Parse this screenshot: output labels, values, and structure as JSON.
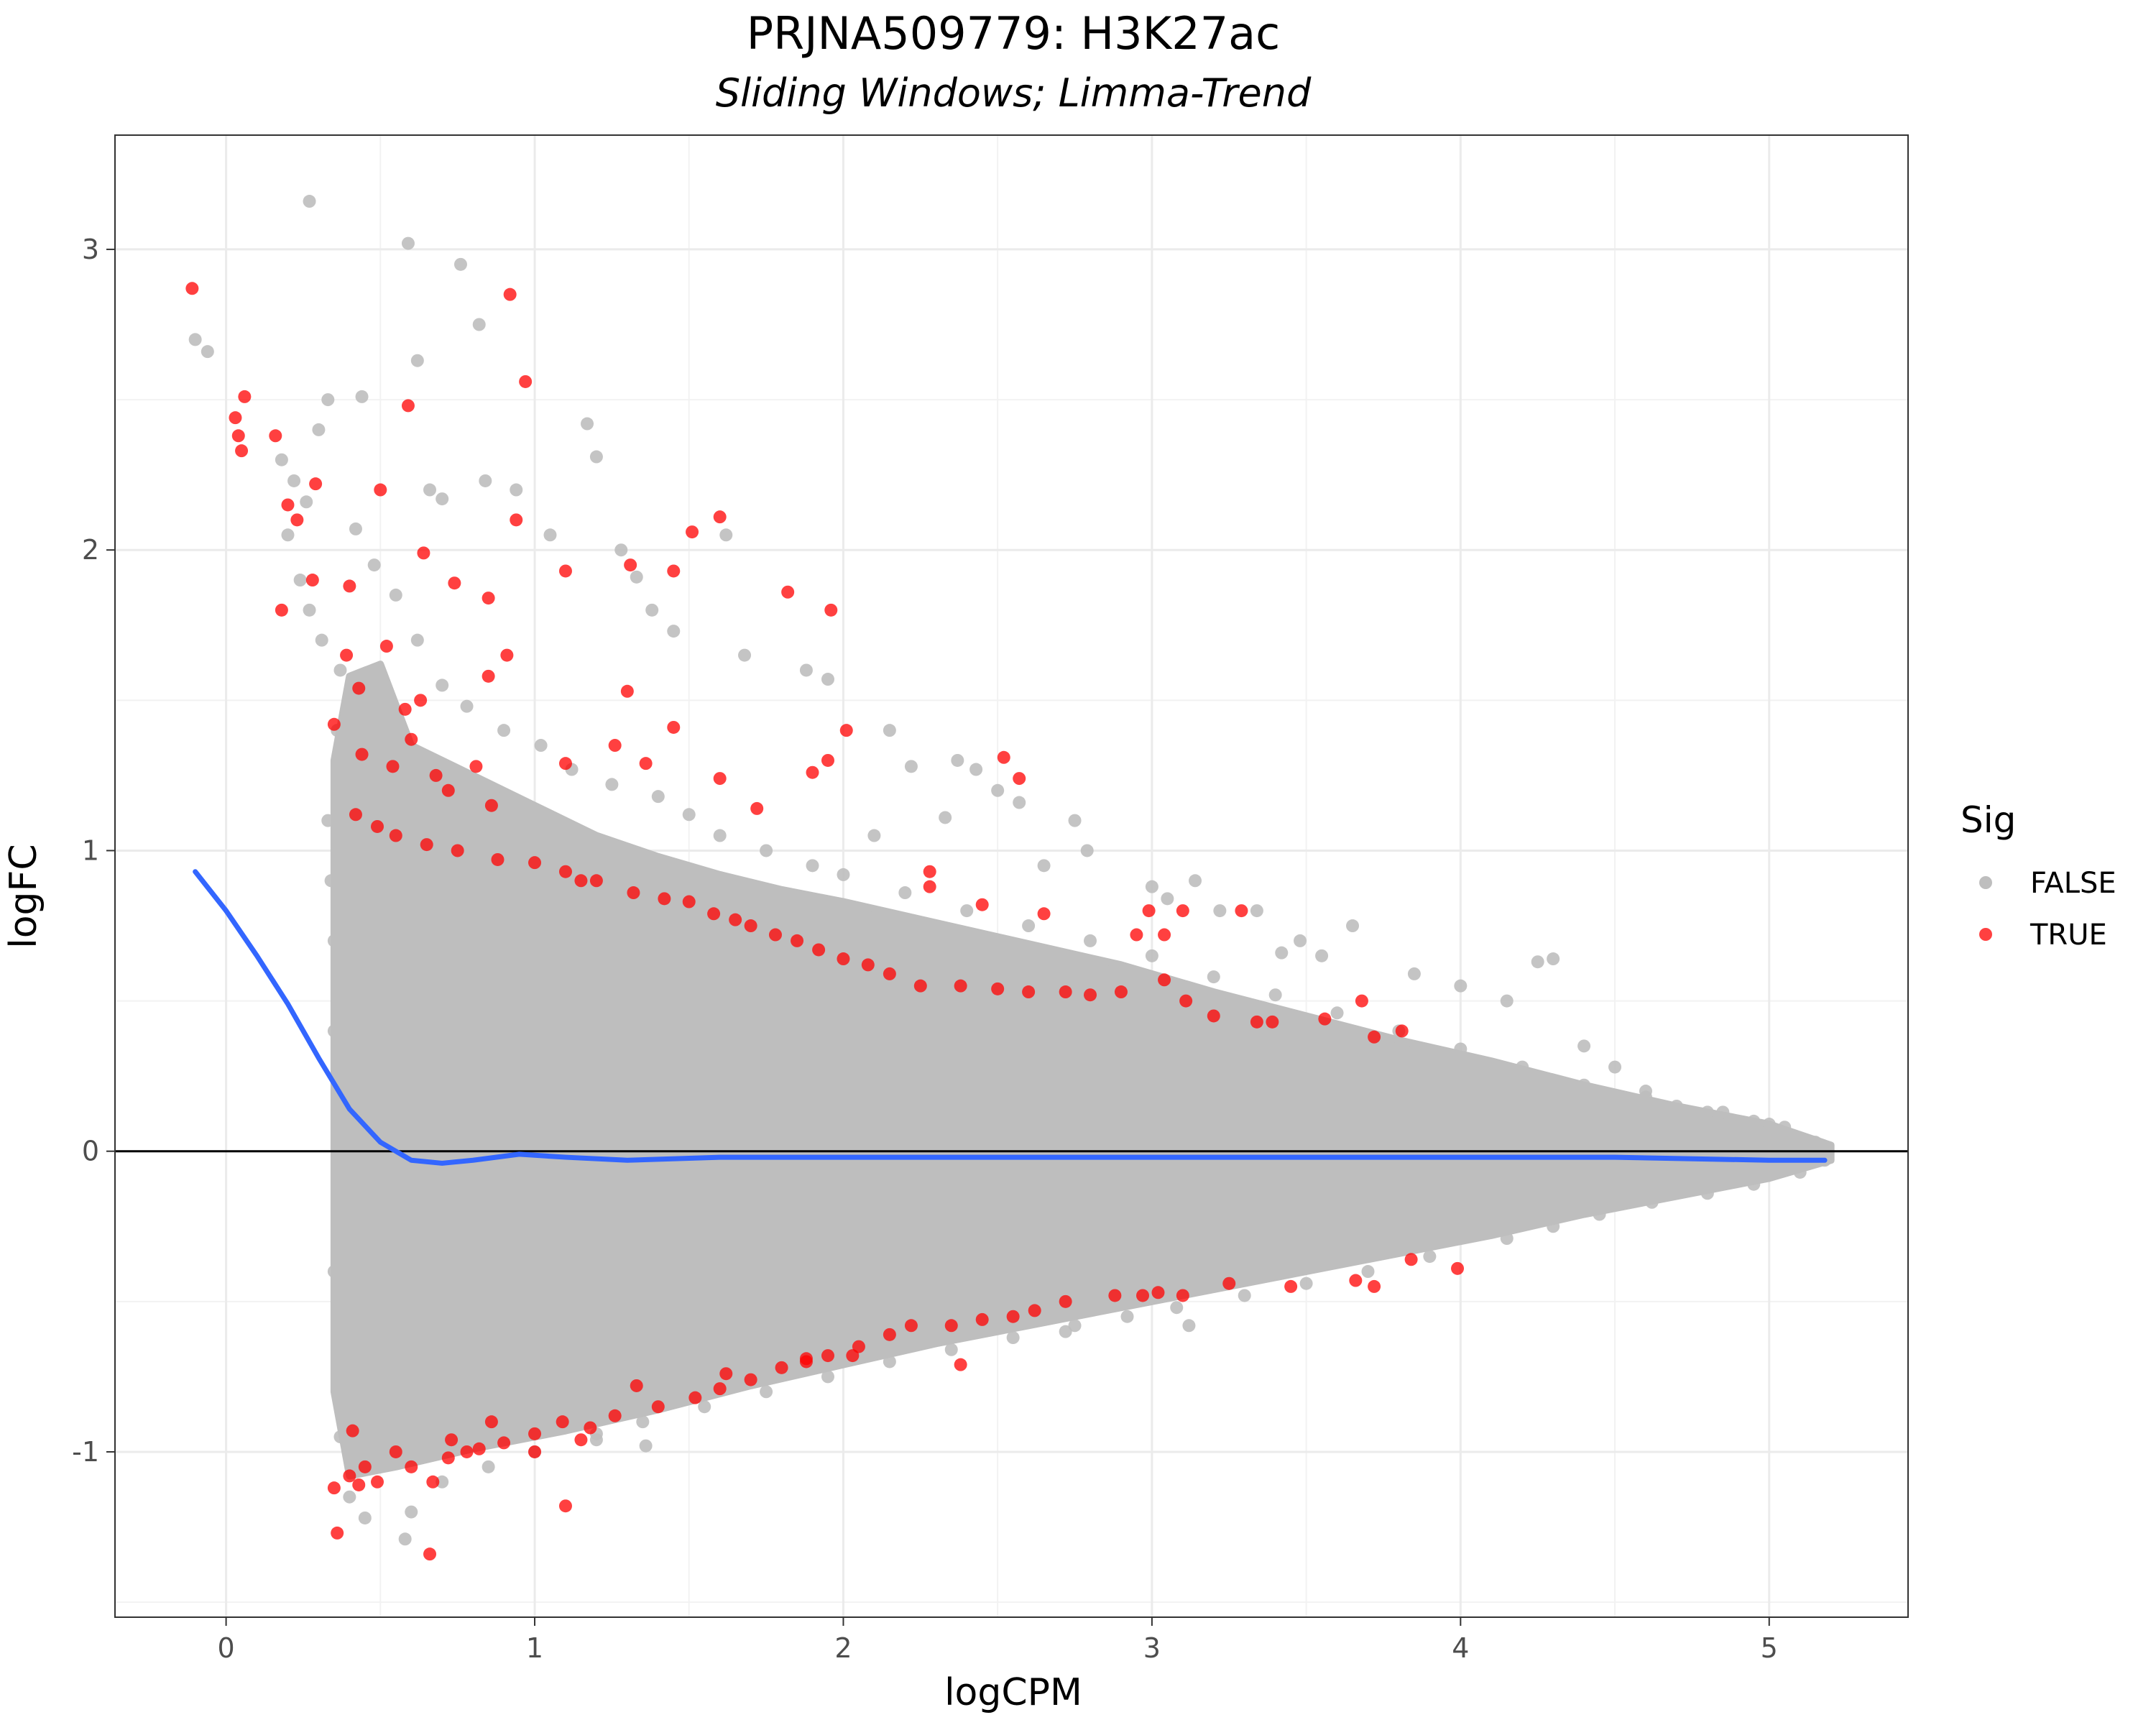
{
  "chart_data": {
    "type": "scatter",
    "title": "PRJNA509779: H3K27ac",
    "subtitle": "Sliding Windows; Limma-Trend",
    "xlabel": "logCPM",
    "ylabel": "logFC",
    "xlim": [
      -0.36,
      5.45
    ],
    "ylim": [
      -1.55,
      3.38
    ],
    "x_ticks": [
      0,
      1,
      2,
      3,
      4,
      5
    ],
    "y_ticks": [
      -1,
      0,
      1,
      2,
      3
    ],
    "x_tick_labels": [
      "0",
      "1",
      "2",
      "3",
      "4",
      "5"
    ],
    "y_tick_labels": [
      "-1",
      "0",
      "1",
      "2",
      "3"
    ],
    "grid": true,
    "hline_y": 0,
    "legend": {
      "title": "Sig",
      "position": "right",
      "entries": [
        {
          "label": "FALSE",
          "color": "#bebebe"
        },
        {
          "label": "TRUE",
          "color": "#ff0000"
        }
      ]
    },
    "series": [
      {
        "name": "FALSE",
        "color": "#bebebe",
        "points": [
          [
            -0.1,
            2.7
          ],
          [
            -0.06,
            2.66
          ],
          [
            0.27,
            3.16
          ],
          [
            0.59,
            3.02
          ],
          [
            0.76,
            2.95
          ],
          [
            0.82,
            2.75
          ],
          [
            0.62,
            2.63
          ],
          [
            0.33,
            2.5
          ],
          [
            0.44,
            2.51
          ],
          [
            1.17,
            2.42
          ],
          [
            1.2,
            2.31
          ],
          [
            0.3,
            2.4
          ],
          [
            0.18,
            2.3
          ],
          [
            0.22,
            2.23
          ],
          [
            0.94,
            2.2
          ],
          [
            0.84,
            2.23
          ],
          [
            0.66,
            2.2
          ],
          [
            0.7,
            2.17
          ],
          [
            1.05,
            2.05
          ],
          [
            1.28,
            2.0
          ],
          [
            1.62,
            2.05
          ],
          [
            1.33,
            1.91
          ],
          [
            1.38,
            1.8
          ],
          [
            1.45,
            1.73
          ],
          [
            1.68,
            1.65
          ],
          [
            1.88,
            1.6
          ],
          [
            1.95,
            1.57
          ],
          [
            2.15,
            1.4
          ],
          [
            2.22,
            1.28
          ],
          [
            2.37,
            1.3
          ],
          [
            2.43,
            1.27
          ],
          [
            2.5,
            1.2
          ],
          [
            2.57,
            1.16
          ],
          [
            2.1,
            1.05
          ],
          [
            2.33,
            1.11
          ],
          [
            2.75,
            1.1
          ],
          [
            2.79,
            1.0
          ],
          [
            2.65,
            0.95
          ],
          [
            3.0,
            0.88
          ],
          [
            3.05,
            0.84
          ],
          [
            3.14,
            0.9
          ],
          [
            3.34,
            0.8
          ],
          [
            3.22,
            0.8
          ],
          [
            3.48,
            0.7
          ],
          [
            3.65,
            0.75
          ],
          [
            3.42,
            0.66
          ],
          [
            3.55,
            0.65
          ],
          [
            3.85,
            0.59
          ],
          [
            4.0,
            0.55
          ],
          [
            4.15,
            0.5
          ],
          [
            4.25,
            0.63
          ],
          [
            4.3,
            0.64
          ],
          [
            4.4,
            0.35
          ],
          [
            4.5,
            0.28
          ],
          [
            4.6,
            0.2
          ],
          [
            4.7,
            0.15
          ],
          [
            4.85,
            0.13
          ],
          [
            4.95,
            0.1
          ],
          [
            5.05,
            0.08
          ],
          [
            5.15,
            0.03
          ],
          [
            5.18,
            -0.03
          ],
          [
            5.1,
            -0.07
          ],
          [
            4.95,
            -0.11
          ],
          [
            4.8,
            -0.14
          ],
          [
            4.62,
            -0.17
          ],
          [
            4.45,
            -0.21
          ],
          [
            4.3,
            -0.25
          ],
          [
            4.15,
            -0.29
          ],
          [
            3.9,
            -0.35
          ],
          [
            3.7,
            -0.4
          ],
          [
            3.5,
            -0.44
          ],
          [
            3.3,
            -0.48
          ],
          [
            3.08,
            -0.52
          ],
          [
            2.92,
            -0.55
          ],
          [
            2.75,
            -0.58
          ],
          [
            2.55,
            -0.62
          ],
          [
            2.35,
            -0.66
          ],
          [
            2.15,
            -0.7
          ],
          [
            1.95,
            -0.75
          ],
          [
            1.75,
            -0.8
          ],
          [
            1.55,
            -0.85
          ],
          [
            1.35,
            -0.9
          ],
          [
            1.2,
            -0.94
          ],
          [
            1.0,
            -1.0
          ],
          [
            0.85,
            -1.05
          ],
          [
            0.7,
            -1.1
          ],
          [
            0.6,
            -1.2
          ],
          [
            0.58,
            -1.29
          ],
          [
            0.45,
            -1.22
          ],
          [
            0.4,
            -1.15
          ],
          [
            0.37,
            -0.95
          ],
          [
            0.36,
            -0.7
          ],
          [
            0.35,
            -0.4
          ],
          [
            0.35,
            0.4
          ],
          [
            0.35,
            0.7
          ],
          [
            0.34,
            0.9
          ],
          [
            0.33,
            1.1
          ],
          [
            0.36,
            1.4
          ],
          [
            0.37,
            1.6
          ],
          [
            0.31,
            1.7
          ],
          [
            0.27,
            1.8
          ],
          [
            0.24,
            1.9
          ],
          [
            0.2,
            2.05
          ],
          [
            0.26,
            2.16
          ],
          [
            0.42,
            2.07
          ],
          [
            0.48,
            1.95
          ],
          [
            0.55,
            1.85
          ],
          [
            0.62,
            1.7
          ],
          [
            0.7,
            1.55
          ],
          [
            0.78,
            1.48
          ],
          [
            0.9,
            1.4
          ],
          [
            1.02,
            1.35
          ],
          [
            1.12,
            1.27
          ],
          [
            1.25,
            1.22
          ],
          [
            1.4,
            1.18
          ],
          [
            1.5,
            1.12
          ],
          [
            1.6,
            1.05
          ],
          [
            1.75,
            1.0
          ],
          [
            1.9,
            0.95
          ],
          [
            2.0,
            0.92
          ],
          [
            2.2,
            0.86
          ],
          [
            2.4,
            0.8
          ],
          [
            2.6,
            0.75
          ],
          [
            2.8,
            0.7
          ],
          [
            3.0,
            0.65
          ],
          [
            3.2,
            0.58
          ],
          [
            3.4,
            0.52
          ],
          [
            3.6,
            0.46
          ],
          [
            3.8,
            0.4
          ],
          [
            4.0,
            0.34
          ],
          [
            4.2,
            0.28
          ],
          [
            4.4,
            0.22
          ],
          [
            4.6,
            0.18
          ],
          [
            4.8,
            0.13
          ],
          [
            5.0,
            0.09
          ],
          [
            3.88,
            0.1
          ],
          [
            2.72,
            -0.6
          ],
          [
            3.12,
            -0.58
          ],
          [
            1.2,
            -0.96
          ],
          [
            1.36,
            -0.98
          ]
        ]
      },
      {
        "name": "TRUE",
        "color": "#ff0000",
        "points": [
          [
            -0.11,
            2.87
          ],
          [
            0.92,
            2.85
          ],
          [
            0.97,
            2.56
          ],
          [
            0.06,
            2.51
          ],
          [
            0.59,
            2.48
          ],
          [
            0.03,
            2.44
          ],
          [
            0.04,
            2.38
          ],
          [
            0.16,
            2.38
          ],
          [
            0.05,
            2.33
          ],
          [
            0.29,
            2.22
          ],
          [
            0.5,
            2.2
          ],
          [
            0.2,
            2.15
          ],
          [
            0.23,
            2.1
          ],
          [
            0.94,
            2.1
          ],
          [
            1.6,
            2.11
          ],
          [
            1.51,
            2.06
          ],
          [
            0.64,
            1.99
          ],
          [
            1.31,
            1.95
          ],
          [
            1.1,
            1.93
          ],
          [
            1.45,
            1.93
          ],
          [
            0.28,
            1.9
          ],
          [
            0.4,
            1.88
          ],
          [
            0.74,
            1.89
          ],
          [
            1.82,
            1.86
          ],
          [
            1.96,
            1.8
          ],
          [
            0.18,
            1.8
          ],
          [
            0.85,
            1.84
          ],
          [
            0.91,
            1.65
          ],
          [
            0.85,
            1.58
          ],
          [
            0.52,
            1.68
          ],
          [
            0.39,
            1.65
          ],
          [
            0.43,
            1.54
          ],
          [
            0.63,
            1.5
          ],
          [
            0.58,
            1.47
          ],
          [
            0.35,
            1.42
          ],
          [
            0.6,
            1.37
          ],
          [
            0.44,
            1.32
          ],
          [
            0.54,
            1.28
          ],
          [
            0.68,
            1.25
          ],
          [
            0.72,
            1.2
          ],
          [
            0.81,
            1.28
          ],
          [
            0.86,
            1.15
          ],
          [
            1.1,
            1.29
          ],
          [
            1.26,
            1.35
          ],
          [
            1.3,
            1.53
          ],
          [
            1.45,
            1.41
          ],
          [
            1.36,
            1.29
          ],
          [
            1.6,
            1.24
          ],
          [
            1.72,
            1.14
          ],
          [
            1.9,
            1.26
          ],
          [
            2.01,
            1.4
          ],
          [
            1.95,
            1.3
          ],
          [
            2.52,
            1.31
          ],
          [
            2.57,
            1.24
          ],
          [
            0.42,
            1.12
          ],
          [
            0.49,
            1.08
          ],
          [
            0.55,
            1.05
          ],
          [
            0.65,
            1.02
          ],
          [
            0.75,
            1.0
          ],
          [
            0.88,
            0.97
          ],
          [
            1.0,
            0.96
          ],
          [
            1.1,
            0.93
          ],
          [
            1.2,
            0.9
          ],
          [
            1.32,
            0.86
          ],
          [
            1.42,
            0.84
          ],
          [
            1.5,
            0.83
          ],
          [
            1.58,
            0.79
          ],
          [
            1.65,
            0.77
          ],
          [
            1.7,
            0.75
          ],
          [
            1.78,
            0.72
          ],
          [
            1.85,
            0.7
          ],
          [
            1.92,
            0.67
          ],
          [
            2.0,
            0.64
          ],
          [
            2.08,
            0.62
          ],
          [
            2.15,
            0.59
          ],
          [
            2.25,
            0.55
          ],
          [
            2.38,
            0.55
          ],
          [
            2.5,
            0.54
          ],
          [
            2.6,
            0.53
          ],
          [
            2.72,
            0.53
          ],
          [
            2.8,
            0.52
          ],
          [
            2.9,
            0.53
          ],
          [
            3.04,
            0.57
          ],
          [
            3.11,
            0.5
          ],
          [
            3.2,
            0.45
          ],
          [
            3.34,
            0.43
          ],
          [
            3.39,
            0.43
          ],
          [
            3.56,
            0.44
          ],
          [
            3.68,
            0.5
          ],
          [
            3.72,
            0.38
          ],
          [
            3.81,
            0.4
          ],
          [
            2.28,
            0.93
          ],
          [
            2.45,
            0.82
          ],
          [
            2.65,
            0.79
          ],
          [
            2.95,
            0.72
          ],
          [
            3.04,
            0.72
          ],
          [
            2.99,
            0.8
          ],
          [
            3.1,
            0.8
          ],
          [
            3.29,
            0.8
          ],
          [
            1.15,
            0.9
          ],
          [
            2.28,
            0.88
          ],
          [
            0.36,
            -1.27
          ],
          [
            0.35,
            -1.12
          ],
          [
            0.4,
            -1.08
          ],
          [
            0.43,
            -1.11
          ],
          [
            0.45,
            -1.05
          ],
          [
            0.49,
            -1.1
          ],
          [
            0.6,
            -1.05
          ],
          [
            0.67,
            -1.1
          ],
          [
            0.72,
            -1.02
          ],
          [
            0.78,
            -1.0
          ],
          [
            0.82,
            -0.99
          ],
          [
            0.9,
            -0.97
          ],
          [
            1.0,
            -0.94
          ],
          [
            1.09,
            -0.9
          ],
          [
            1.1,
            -1.18
          ],
          [
            1.15,
            -0.96
          ],
          [
            1.18,
            -0.92
          ],
          [
            1.26,
            -0.88
          ],
          [
            1.4,
            -0.85
          ],
          [
            1.52,
            -0.82
          ],
          [
            1.6,
            -0.79
          ],
          [
            1.7,
            -0.76
          ],
          [
            1.8,
            -0.72
          ],
          [
            1.88,
            -0.7
          ],
          [
            1.95,
            -0.68
          ],
          [
            2.05,
            -0.65
          ],
          [
            2.15,
            -0.61
          ],
          [
            2.22,
            -0.58
          ],
          [
            2.35,
            -0.58
          ],
          [
            2.45,
            -0.56
          ],
          [
            2.55,
            -0.55
          ],
          [
            2.62,
            -0.53
          ],
          [
            2.72,
            -0.5
          ],
          [
            2.88,
            -0.48
          ],
          [
            2.97,
            -0.48
          ],
          [
            3.02,
            -0.47
          ],
          [
            3.1,
            -0.48
          ],
          [
            3.25,
            -0.44
          ],
          [
            3.45,
            -0.45
          ],
          [
            3.72,
            -0.45
          ],
          [
            3.99,
            -0.39
          ],
          [
            3.66,
            -0.43
          ],
          [
            3.84,
            -0.36
          ],
          [
            2.38,
            -0.71
          ],
          [
            2.03,
            -0.68
          ],
          [
            1.88,
            -0.69
          ],
          [
            0.41,
            -0.93
          ],
          [
            0.55,
            -1.0
          ],
          [
            0.66,
            -1.34
          ],
          [
            0.73,
            -0.96
          ],
          [
            0.86,
            -0.9
          ],
          [
            1.0,
            -1.0
          ],
          [
            1.33,
            -0.78
          ],
          [
            1.62,
            -0.74
          ]
        ]
      }
    ],
    "loess_trend": {
      "color": "#3366ff",
      "points": [
        [
          -0.1,
          0.93
        ],
        [
          0.0,
          0.8
        ],
        [
          0.1,
          0.65
        ],
        [
          0.2,
          0.49
        ],
        [
          0.3,
          0.31
        ],
        [
          0.4,
          0.14
        ],
        [
          0.5,
          0.03
        ],
        [
          0.6,
          -0.03
        ],
        [
          0.7,
          -0.04
        ],
        [
          0.8,
          -0.03
        ],
        [
          0.95,
          -0.01
        ],
        [
          1.1,
          -0.02
        ],
        [
          1.3,
          -0.03
        ],
        [
          1.6,
          -0.02
        ],
        [
          2.0,
          -0.02
        ],
        [
          2.5,
          -0.02
        ],
        [
          3.0,
          -0.02
        ],
        [
          3.5,
          -0.02
        ],
        [
          4.0,
          -0.02
        ],
        [
          4.5,
          -0.02
        ],
        [
          5.0,
          -0.03
        ],
        [
          5.18,
          -0.03
        ]
      ]
    }
  }
}
